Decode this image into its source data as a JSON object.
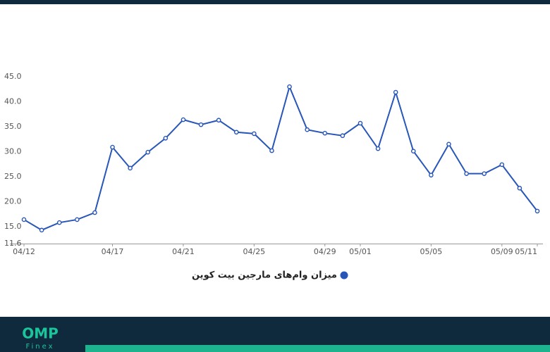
{
  "chart_data": {
    "type": "line",
    "categories": [
      "04/12",
      null,
      null,
      null,
      null,
      "04/17",
      null,
      null,
      null,
      "04/21",
      null,
      null,
      null,
      "04/25",
      null,
      null,
      null,
      "04/29",
      null,
      "05/01",
      null,
      null,
      null,
      "05/05",
      null,
      null,
      null,
      "05/09",
      null,
      "05/11"
    ],
    "series": [
      {
        "name": "میزان وام‌های مارجین بیت کوین",
        "color": "#2756b8",
        "values": [
          16.4,
          14.3,
          15.8,
          16.4,
          17.8,
          30.9,
          26.7,
          29.9,
          32.7,
          36.4,
          35.4,
          36.3,
          33.9,
          33.6,
          30.2,
          43.0,
          34.4,
          33.7,
          33.2,
          35.7,
          30.6,
          41.9,
          30.1,
          25.3,
          31.5,
          25.6,
          25.6,
          27.4,
          22.7,
          18.1
        ]
      }
    ],
    "ylim": [
      11.6,
      45.0
    ],
    "yticks": [
      11.6,
      {
        "value": 15,
        "label": "15.0"
      },
      {
        "value": 20,
        "label": "20.0"
      },
      {
        "value": 25,
        "label": "25.0"
      },
      {
        "value": 30,
        "label": "30.0"
      },
      {
        "value": 35,
        "label": "35.0"
      },
      {
        "value": 40,
        "label": "40.0"
      },
      {
        "value": 45,
        "label": "45.0"
      }
    ],
    "grid": false,
    "legend": "bottom"
  },
  "footer": {
    "logo": "OMP",
    "logo_sub": "Finex"
  }
}
